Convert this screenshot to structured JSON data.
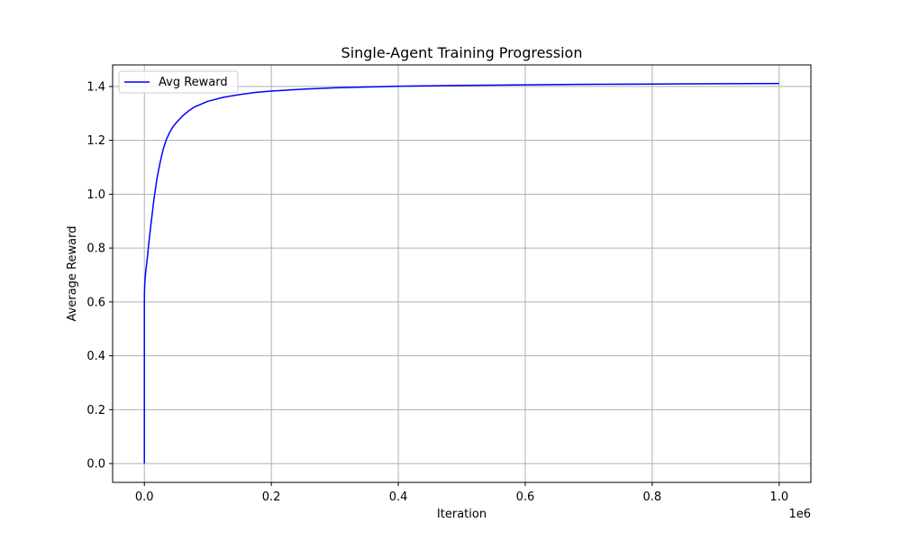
{
  "chart_data": {
    "type": "line",
    "title": "Single-Agent Training Progression",
    "xlabel": "Iteration",
    "ylabel": "Average Reward",
    "x_offset_label": "1e6",
    "xlim": [
      -50000,
      1050000
    ],
    "ylim": [
      -0.07,
      1.48
    ],
    "x_ticks": [
      0,
      200000,
      400000,
      600000,
      800000,
      1000000
    ],
    "x_tick_labels": [
      "0.0",
      "0.2",
      "0.4",
      "0.6",
      "0.8",
      "1.0"
    ],
    "y_ticks": [
      0.0,
      0.2,
      0.4,
      0.6,
      0.8,
      1.0,
      1.2,
      1.4
    ],
    "y_tick_labels": [
      "0.0",
      "0.2",
      "0.4",
      "0.6",
      "0.8",
      "1.0",
      "1.2",
      "1.4"
    ],
    "grid": true,
    "legend": {
      "placement": "top-left",
      "entries": [
        "Avg Reward"
      ]
    },
    "series": [
      {
        "name": "Avg Reward",
        "color": "#0000ff",
        "x": [
          0,
          1,
          100,
          500,
          1000,
          2000,
          3000,
          5000,
          7500,
          10000,
          12500,
          15000,
          17500,
          20000,
          25000,
          30000,
          35000,
          40000,
          45000,
          50000,
          60000,
          70000,
          80000,
          90000,
          100000,
          125000,
          150000,
          175000,
          200000,
          250000,
          300000,
          350000,
          400000,
          500000,
          600000,
          700000,
          800000,
          900000,
          1000000
        ],
        "y": [
          0.0,
          0.59,
          0.63,
          0.66,
          0.68,
          0.71,
          0.73,
          0.77,
          0.83,
          0.88,
          0.93,
          0.98,
          1.02,
          1.06,
          1.12,
          1.17,
          1.205,
          1.23,
          1.25,
          1.265,
          1.29,
          1.31,
          1.325,
          1.335,
          1.345,
          1.36,
          1.37,
          1.378,
          1.383,
          1.39,
          1.395,
          1.398,
          1.401,
          1.404,
          1.406,
          1.408,
          1.409,
          1.41,
          1.411
        ]
      }
    ]
  }
}
